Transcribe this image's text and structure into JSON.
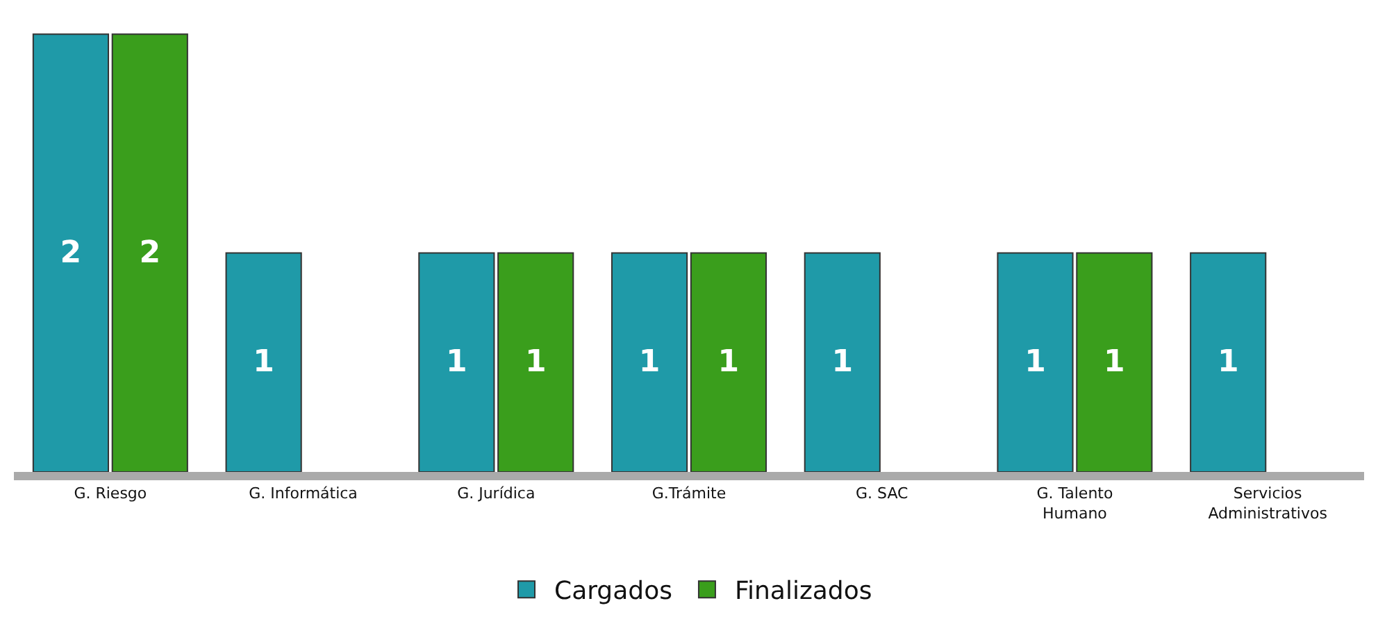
{
  "chart_data": {
    "type": "bar",
    "categories": [
      "G. Riesgo",
      "G. Informática",
      "G. Jurídica",
      "G.Trámite",
      "G. SAC",
      "G. Talento\nHumano",
      "Servicios\nAdministrativos"
    ],
    "series": [
      {
        "name": "Cargados",
        "color": "#1f9aa8",
        "values": [
          2,
          1,
          1,
          1,
          1,
          1,
          1
        ]
      },
      {
        "name": "Finalizados",
        "color": "#3a9e1c",
        "values": [
          2,
          null,
          1,
          1,
          null,
          1,
          null
        ]
      }
    ],
    "data_labels": true,
    "legend": "bottom"
  }
}
